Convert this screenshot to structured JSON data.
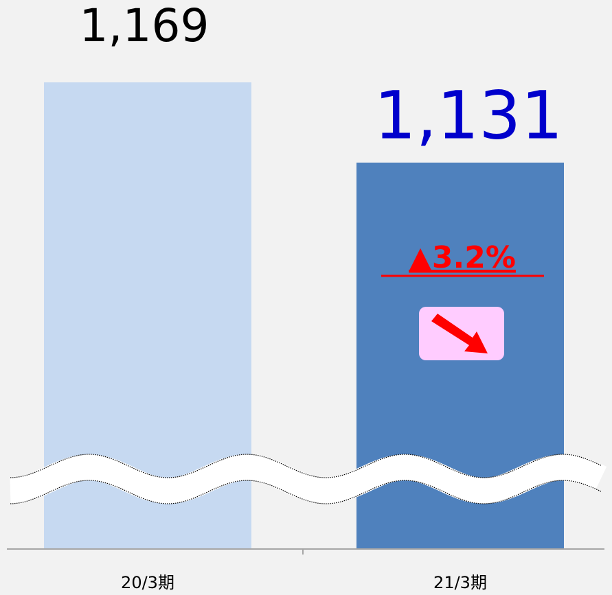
{
  "chart_data": {
    "type": "bar",
    "categories": [
      "20/3期",
      "21/3期"
    ],
    "values": [
      1169,
      1131
    ],
    "value_labels": [
      "1,169",
      "1,131"
    ],
    "colors": [
      "#c6d9f1",
      "#4f81bd"
    ],
    "label_colors": [
      "#000000",
      "#0000cc"
    ],
    "annotation": "▲3.2%",
    "ylim": [
      948,
      1208
    ]
  }
}
